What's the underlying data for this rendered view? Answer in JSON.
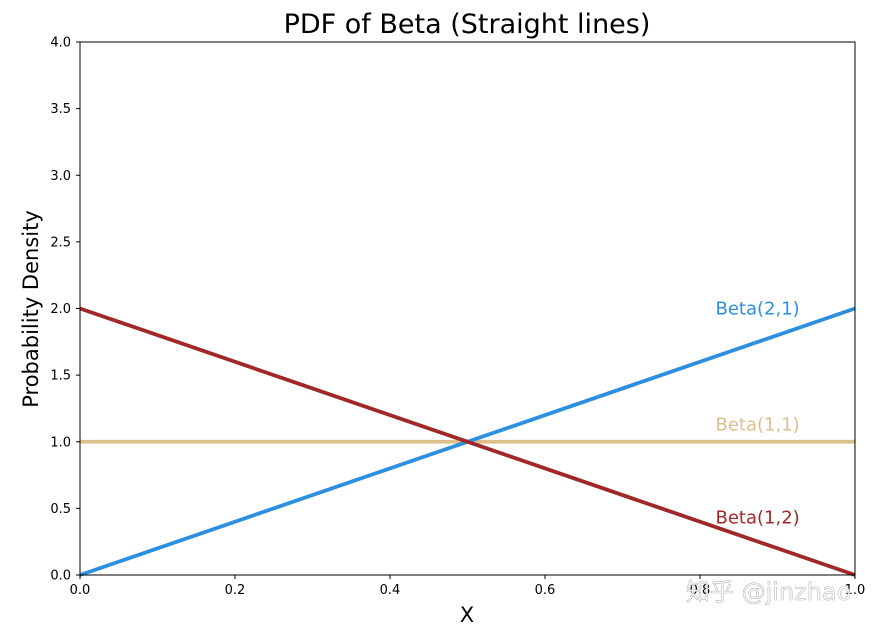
{
  "chart_data": {
    "type": "line",
    "title": "PDF of Beta (Straight lines)",
    "xlabel": "X",
    "ylabel": "Probability Density",
    "xlim": [
      0.0,
      1.0
    ],
    "ylim": [
      0.0,
      4.0
    ],
    "xticks": [
      "0.0",
      "0.2",
      "0.4",
      "0.6",
      "0.8",
      "1.0"
    ],
    "yticks": [
      "0.0",
      "0.5",
      "1.0",
      "1.5",
      "2.0",
      "2.5",
      "3.0",
      "3.5",
      "4.0"
    ],
    "grid": false,
    "legend": "inline labels near right end",
    "series": [
      {
        "name": "Beta(1,1)",
        "color": "#DDBF8C",
        "x": [
          0.0,
          1.0
        ],
        "y": [
          1.0,
          1.0
        ],
        "label_at": [
          0.82,
          1.13
        ]
      },
      {
        "name": "Beta(2,1)",
        "color": "#2E8FE0",
        "x": [
          0.0,
          1.0
        ],
        "y": [
          0.0,
          2.0
        ],
        "label_at": [
          0.82,
          2.0
        ]
      },
      {
        "name": "Beta(1,2)",
        "color": "#A12828",
        "x": [
          0.0,
          1.0
        ],
        "y": [
          2.0,
          0.0
        ],
        "label_at": [
          0.82,
          0.43
        ]
      }
    ]
  },
  "watermark": "知乎 @jinzhao"
}
